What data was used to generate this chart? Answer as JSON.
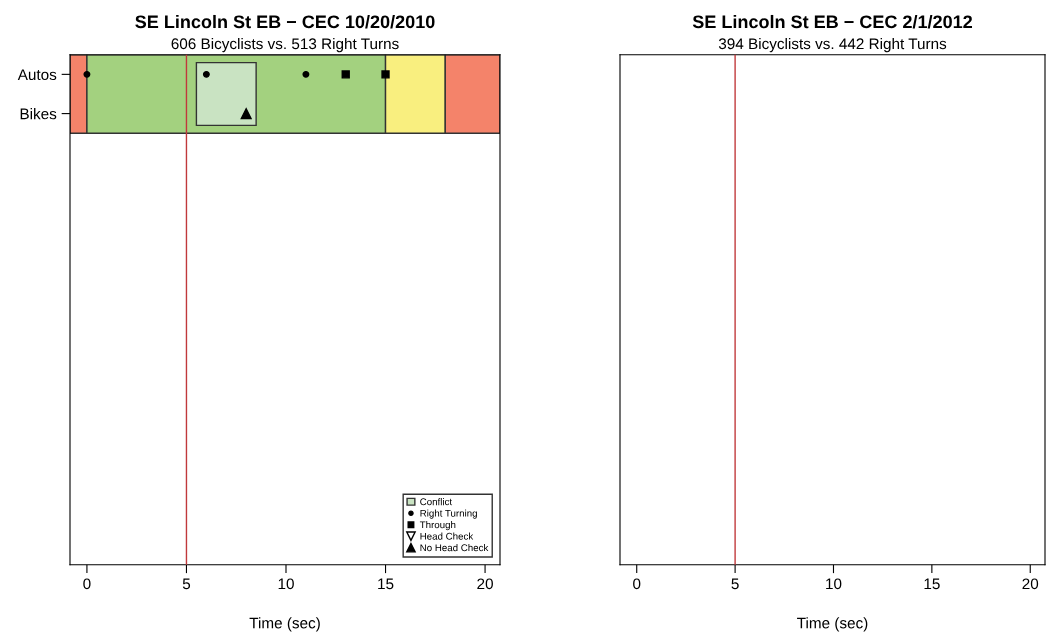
{
  "chart_data": [
    {
      "type": "scatter",
      "orientation": "horizontal",
      "title": "SE Lincoln St EB − CEC 10/20/2010",
      "subtitle": "606 Bicyclists vs. 513 Right Turns",
      "xlabel": "Time (sec)",
      "xlim": [
        -0.85,
        20.75
      ],
      "xticks": [
        0,
        5,
        10,
        15,
        20
      ],
      "categories": [
        "Autos",
        "Bikes",
        null,
        null,
        null,
        null,
        null,
        null,
        null,
        null,
        null,
        null,
        null
      ],
      "series": [
        {
          "name": "Right Turning",
          "color": "#000000",
          "marker": "circle",
          "values": [
            0,
            null,
            null,
            null,
            null,
            null,
            null,
            null,
            null,
            null,
            null,
            null,
            null
          ]
        },
        {
          "color": "#000000",
          "marker": "circle",
          "values": [
            6,
            null,
            null,
            null,
            null,
            null,
            null,
            null,
            null,
            null,
            null,
            null,
            null
          ]
        },
        {
          "color": "#000000",
          "marker": "circle",
          "values": [
            11,
            null,
            null,
            null,
            null,
            null,
            null,
            null,
            null,
            null,
            null,
            null,
            null
          ]
        },
        {
          "name": "Through",
          "color": "#000000",
          "marker": "square",
          "values": [
            13,
            null,
            null,
            null,
            null,
            null,
            null,
            null,
            null,
            null,
            null,
            null,
            null
          ]
        },
        {
          "color": "#000000",
          "marker": "square",
          "values": [
            15,
            null,
            null,
            null,
            null,
            null,
            null,
            null,
            null,
            null,
            null,
            null,
            null
          ]
        },
        {
          "name": "Head Check",
          "color": "#000000",
          "marker": "triangle_down",
          "values": [
            null,
            null,
            null,
            null,
            null,
            null,
            null,
            null,
            null,
            null,
            null,
            null,
            null
          ]
        },
        {
          "name": "No Head Check",
          "color": "#000000",
          "marker": "triangle",
          "values": [
            null,
            8,
            null,
            null,
            null,
            null,
            null,
            null,
            null,
            null,
            null,
            null,
            null
          ]
        }
      ],
      "bands": [
        {
          "axis": "x",
          "from": -0.85,
          "to": 0,
          "color": "#f4836a"
        },
        {
          "axis": "x",
          "from": 0,
          "to": 15,
          "color": "#a3d17f"
        },
        {
          "axis": "x",
          "from": 15,
          "to": 18,
          "color": "#f9ef7f"
        },
        {
          "axis": "x",
          "from": 18,
          "to": 20.75,
          "color": "#f4836a"
        },
        {
          "axis": "x",
          "from": 5.5,
          "to": 8.5,
          "color": "#c9e3c2",
          "label": "Conflict"
        }
      ],
      "ref_lines": [
        {
          "axis": "x",
          "value": 5,
          "color": "#c0393b"
        }
      ],
      "legend": "bottom right",
      "grid": false
    },
    {
      "type": "scatter",
      "orientation": "horizontal",
      "title": "SE Lincoln St EB − CEC 2/1/2012",
      "subtitle": "394 Bicyclists vs. 442 Right Turns",
      "xlabel": "Time (sec)",
      "xlim": [
        -0.85,
        20.75
      ],
      "xticks": [
        0,
        5,
        10,
        15,
        20
      ],
      "categories": [
        null,
        null,
        null,
        null,
        null,
        null,
        null,
        null,
        null,
        null,
        null,
        null,
        null
      ],
      "ref_lines": [
        {
          "axis": "x",
          "value": 5,
          "color": "#c0393b"
        }
      ],
      "grid": false
    }
  ]
}
